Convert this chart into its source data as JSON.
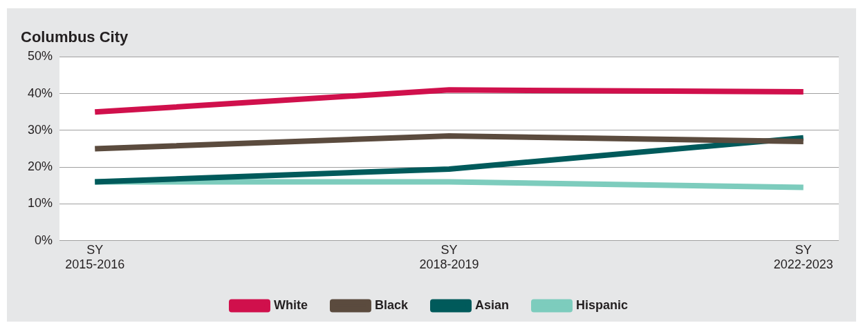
{
  "chart_data": {
    "type": "line",
    "title": "Columbus City",
    "categories": [
      "SY 2015-2016",
      "SY 2018-2019",
      "SY 2022-2023"
    ],
    "series": [
      {
        "name": "White",
        "color": "#d0104c",
        "values": [
          35,
          41,
          40.5
        ]
      },
      {
        "name": "Black",
        "color": "#5b4b3e",
        "values": [
          25,
          28.5,
          27
        ]
      },
      {
        "name": "Asian",
        "color": "#005a5b",
        "values": [
          16,
          19.5,
          28
        ]
      },
      {
        "name": "Hispanic",
        "color": "#7dccbd",
        "values": [
          16,
          16,
          14.5
        ]
      }
    ],
    "ylim": [
      0,
      50
    ],
    "yticks": [
      {
        "value": 0,
        "label": "0%"
      },
      {
        "value": 10,
        "label": "10%"
      },
      {
        "value": 20,
        "label": "20%"
      },
      {
        "value": 30,
        "label": "30%"
      },
      {
        "value": 40,
        "label": "40%"
      },
      {
        "value": 50,
        "label": "50%"
      }
    ],
    "grid": "y",
    "legend": "bottom",
    "marker": "none",
    "line_style": "solid"
  }
}
